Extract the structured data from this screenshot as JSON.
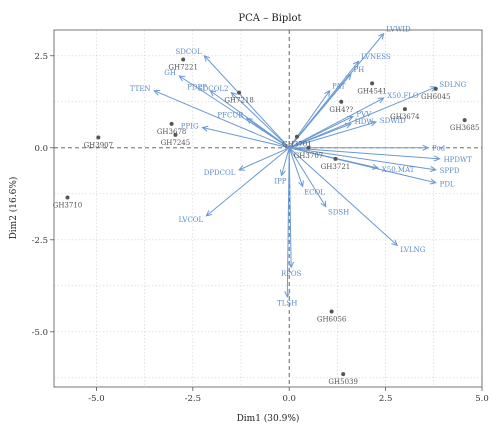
{
  "chart_data": {
    "type": "scatter",
    "title": "PCA – Biplot",
    "xlabel": "Dim1 (30.9%)",
    "ylabel": "Dim2 (16.6%)",
    "xlim": [
      -6.1,
      5.0
    ],
    "ylim": [
      -6.5,
      3.2
    ],
    "xticks": [
      -5.0,
      -2.5,
      0.0,
      2.5,
      5.0
    ],
    "xtick_labels": [
      "-5.0",
      "-2.5",
      "0.0",
      "2.5",
      "5.0"
    ],
    "yticks": [
      -5.0,
      -2.5,
      0.0,
      2.5
    ],
    "ytick_labels": [
      "-5.0",
      "-2.5",
      "0.0",
      "2.5"
    ],
    "grid": true,
    "colors": {
      "individuals": "#555555",
      "variables": "#6a9ad2",
      "variable_labels": "#5a8cc8"
    },
    "individuals": [
      {
        "name": "GH7221",
        "x": -2.75,
        "y": 2.4
      },
      {
        "name": "GH7218",
        "x": -1.3,
        "y": 1.5
      },
      {
        "name": "GH3678",
        "x": -3.05,
        "y": 0.65
      },
      {
        "name": "GH7245",
        "x": -2.95,
        "y": 0.35
      },
      {
        "name": "GH3907",
        "x": -4.95,
        "y": 0.28
      },
      {
        "name": "GH3710",
        "x": -5.75,
        "y": -1.35
      },
      {
        "name": "GH3701",
        "x": 0.2,
        "y": 0.3
      },
      {
        "name": "GH3707",
        "x": 0.5,
        "y": 0.0
      },
      {
        "name": "GH3721",
        "x": 1.2,
        "y": -0.3
      },
      {
        "name": "GH4541",
        "x": 2.15,
        "y": 1.75
      },
      {
        "name": "GH4??",
        "x": 1.35,
        "y": 1.25
      },
      {
        "name": "GH3674",
        "x": 3.0,
        "y": 1.05
      },
      {
        "name": "GH6045",
        "x": 3.8,
        "y": 1.6
      },
      {
        "name": "GH3685",
        "x": 4.55,
        "y": 0.75
      },
      {
        "name": "GH6056",
        "x": 1.1,
        "y": -4.45
      },
      {
        "name": "GH5039",
        "x": 1.4,
        "y": -6.15
      }
    ],
    "variables": [
      {
        "name": "LVWID",
        "x": 2.45,
        "y": 3.1
      },
      {
        "name": "LVNESS",
        "x": 1.8,
        "y": 2.35
      },
      {
        "name": "PH",
        "x": 1.6,
        "y": 2.0
      },
      {
        "name": "PAT",
        "x": 1.05,
        "y": 1.55
      },
      {
        "name": "SDLNG",
        "x": 3.8,
        "y": 1.65
      },
      {
        "name": "X50.FLO",
        "x": 2.45,
        "y": 1.35
      },
      {
        "name": "PVV",
        "x": 1.65,
        "y": 0.85
      },
      {
        "name": "HDW",
        "x": 1.6,
        "y": 0.65
      },
      {
        "name": "SDWID",
        "x": 2.25,
        "y": 0.7
      },
      {
        "name": "Pod",
        "x": 3.6,
        "y": 0.0
      },
      {
        "name": "HPDWT",
        "x": 3.9,
        "y": -0.3
      },
      {
        "name": "SPPD",
        "x": 3.8,
        "y": -0.6
      },
      {
        "name": "X50.MAT",
        "x": 2.3,
        "y": -0.55
      },
      {
        "name": "PDL",
        "x": 3.8,
        "y": -0.95
      },
      {
        "name": "LVLNG",
        "x": 2.8,
        "y": -2.65
      },
      {
        "name": "SDSH",
        "x": 0.95,
        "y": -1.6
      },
      {
        "name": "ECOL",
        "x": 0.35,
        "y": -1.05
      },
      {
        "name": "RPOS",
        "x": 0.05,
        "y": -3.25
      },
      {
        "name": "TLSH",
        "x": -0.05,
        "y": -4.05
      },
      {
        "name": "IPP",
        "x": -0.2,
        "y": -0.75
      },
      {
        "name": "LVCOL",
        "x": -2.15,
        "y": -1.85
      },
      {
        "name": "DPDCOL",
        "x": -1.3,
        "y": -0.6
      },
      {
        "name": "PPIG",
        "x": -2.25,
        "y": 0.55
      },
      {
        "name": "PFCUR",
        "x": -1.1,
        "y": 0.8
      },
      {
        "name": "PDPP",
        "x": -2.05,
        "y": 1.55
      },
      {
        "name": "TTEN",
        "x": -3.5,
        "y": 1.55
      },
      {
        "name": "GH",
        "x": -2.85,
        "y": 1.95
      },
      {
        "name": "SDCOL",
        "x": -2.2,
        "y": 2.5
      },
      {
        "name": "SDCOL2",
        "x": -1.5,
        "y": 1.5
      }
    ]
  }
}
